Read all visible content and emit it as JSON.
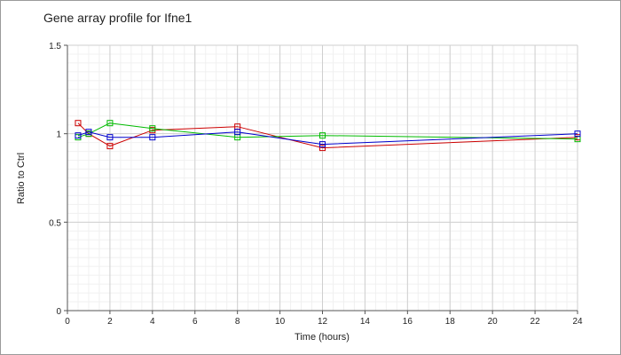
{
  "chart_data": {
    "type": "line",
    "title": "Gene array profile for Ifne1",
    "xlabel": "Time (hours)",
    "ylabel": "Ratio to Ctrl",
    "xlim": [
      0,
      24
    ],
    "ylim": [
      0,
      1.5
    ],
    "x_ticks": [
      "0",
      "2",
      "4",
      "6",
      "8",
      "10",
      "12",
      "14",
      "16",
      "18",
      "20",
      "22",
      "24"
    ],
    "y_ticks": [
      "0",
      "0.5",
      "1",
      "1.5"
    ],
    "grid": true,
    "legend": "none",
    "series": [
      {
        "color": "#cc0000",
        "marker": "square",
        "x": [
          0.5,
          1,
          2,
          4,
          8,
          12,
          24
        ],
        "y": [
          1.06,
          1.0,
          0.93,
          1.02,
          1.04,
          0.92,
          0.98
        ]
      },
      {
        "color": "#00bb00",
        "marker": "square",
        "x": [
          0.5,
          1,
          2,
          4,
          8,
          12,
          24
        ],
        "y": [
          0.98,
          1.0,
          1.06,
          1.03,
          0.98,
          0.99,
          0.97
        ]
      },
      {
        "color": "#0000cc",
        "marker": "square",
        "x": [
          0.5,
          1,
          2,
          4,
          8,
          12,
          24
        ],
        "y": [
          0.99,
          1.01,
          0.98,
          0.98,
          1.01,
          0.94,
          1.0
        ]
      }
    ]
  }
}
